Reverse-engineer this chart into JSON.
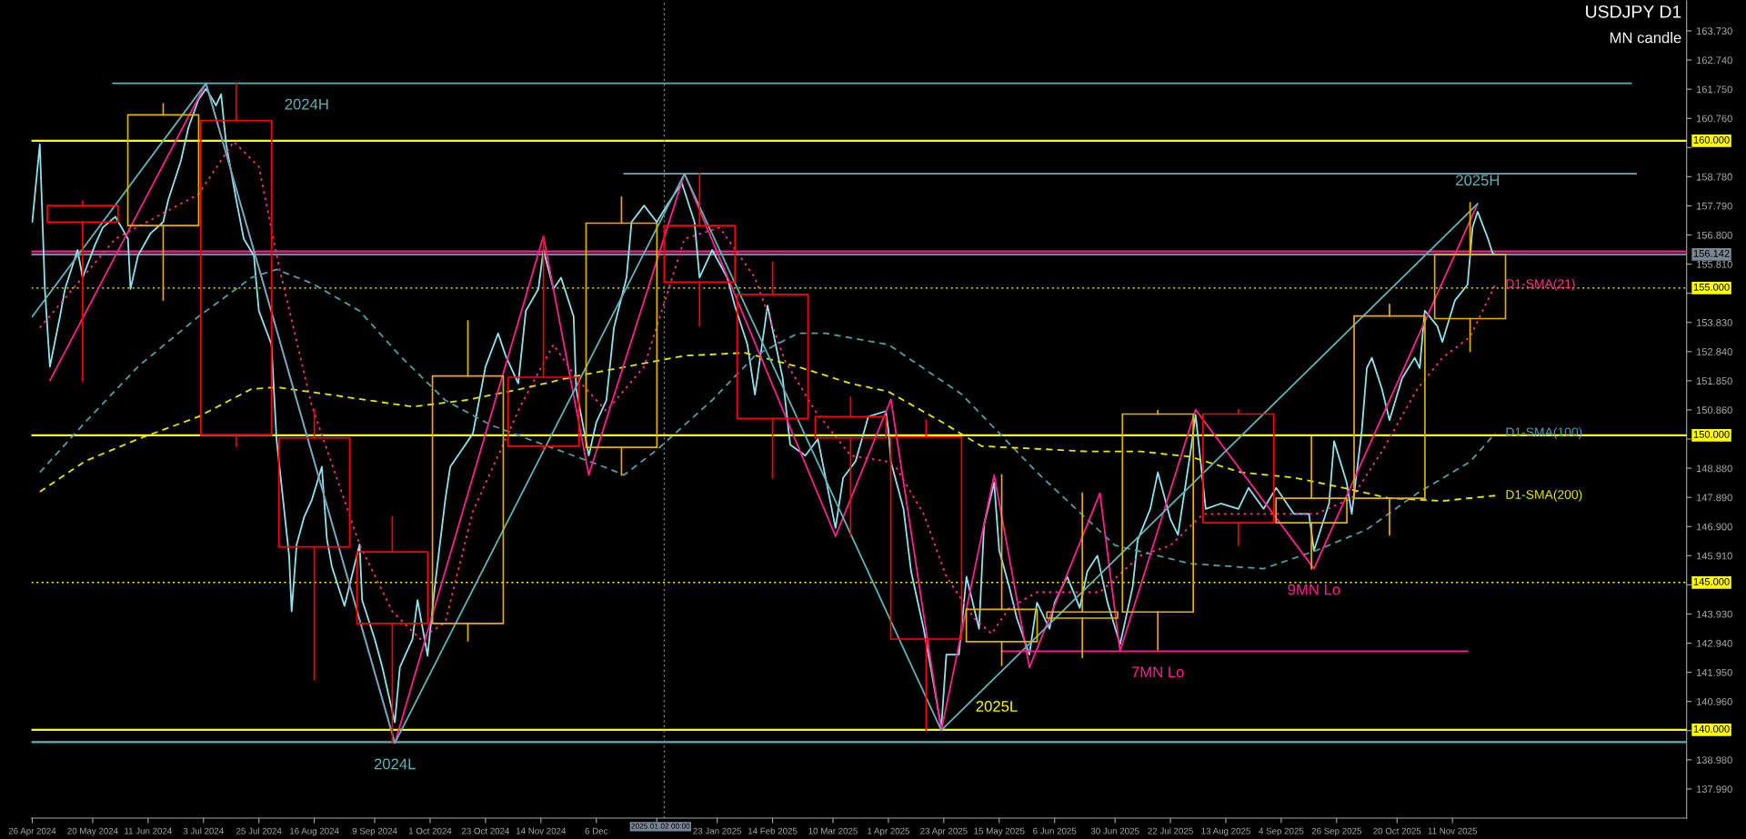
{
  "chart_data": {
    "type": "candlestick",
    "title": "USDJPY D1",
    "subtitle": "MN candle",
    "x": [
      "2024-05-16",
      "2024-06-17",
      "2024-07-16",
      "2024-08-16",
      "2024-09-16",
      "2024-10-16",
      "2024-11-15",
      "2024-12-16",
      "2025-01-16",
      "2025-02-14",
      "2025-03-17",
      "2025-04-16",
      "2025-05-16",
      "2025-06-17",
      "2025-07-17",
      "2025-08-18",
      "2025-09-16",
      "2025-10-17",
      "2025-11-18"
    ],
    "ohlc": [
      [
        157.8,
        157.95,
        151.86,
        157.24
      ],
      [
        157.12,
        161.25,
        154.59,
        160.88
      ],
      [
        160.69,
        161.95,
        149.63,
        150.0
      ],
      [
        149.91,
        150.89,
        141.7,
        146.21
      ],
      [
        146.04,
        147.23,
        139.55,
        143.61
      ],
      [
        143.61,
        153.88,
        143.02,
        152.01
      ],
      [
        151.97,
        156.76,
        149.5,
        149.63
      ],
      [
        149.59,
        158.08,
        148.65,
        157.2
      ],
      [
        157.12,
        158.88,
        153.72,
        155.2
      ],
      [
        154.78,
        155.88,
        148.55,
        150.57
      ],
      [
        150.63,
        151.29,
        146.57,
        149.91
      ],
      [
        149.94,
        150.51,
        139.98,
        143.08
      ],
      [
        142.99,
        148.65,
        142.19,
        144.09
      ],
      [
        143.79,
        148.03,
        142.46,
        144.0
      ],
      [
        144.0,
        150.83,
        142.72,
        150.72
      ],
      [
        150.72,
        150.86,
        146.26,
        147.03
      ],
      [
        147.03,
        149.94,
        145.47,
        147.86
      ],
      [
        147.86,
        154.44,
        146.62,
        154.05
      ],
      [
        153.96,
        157.89,
        152.85,
        156.14
      ]
    ],
    "colors": [
      "#ff0000",
      "#e6b000",
      "#ff0000",
      "#ff0000",
      "#ff0000",
      "#e6b000",
      "#ff0000",
      "#e6b000",
      "#ff0000",
      "#ff0000",
      "#ff0000",
      "#ff0000",
      "#e6b000",
      "#e6b000",
      "#e6b000",
      "#ff0000",
      "#e6b000",
      "#e6b000",
      "#e6b000"
    ],
    "series": [
      {
        "type": "line",
        "color": "#8fe3ec",
        "line_style": "solid",
        "x": [
          "2024-04-26",
          "2024-04-29",
          "2024-05-01",
          "2024-05-03",
          "2024-05-07",
          "2024-05-09",
          "2024-05-14",
          "2024-05-16",
          "2024-05-21",
          "2024-05-24",
          "2024-05-29",
          "2024-06-03",
          "2024-06-04",
          "2024-06-07",
          "2024-06-12",
          "2024-06-17",
          "2024-06-19",
          "2024-06-24",
          "2024-06-27",
          "2024-07-01",
          "2024-07-04",
          "2024-07-08",
          "2024-07-10",
          "2024-07-12",
          "2024-07-16",
          "2024-07-19",
          "2024-07-23",
          "2024-07-25",
          "2024-07-30",
          "2024-08-01",
          "2024-08-06",
          "2024-08-07",
          "2024-08-09",
          "2024-08-12",
          "2024-08-15",
          "2024-08-19",
          "2024-08-21",
          "2024-08-23",
          "2024-08-28",
          "2024-09-03",
          "2024-09-04",
          "2024-09-09",
          "2024-09-12",
          "2024-09-17",
          "2024-09-19",
          "2024-09-24",
          "2024-09-26",
          "2024-09-30",
          "2024-10-03",
          "2024-10-07",
          "2024-10-09",
          "2024-10-15",
          "2024-10-18",
          "2024-10-23",
          "2024-10-28",
          "2024-10-31",
          "2024-11-05",
          "2024-11-08",
          "2024-11-13",
          "2024-11-15",
          "2024-11-19",
          "2024-11-22",
          "2024-11-27",
          "2024-11-28",
          "2024-12-03",
          "2024-12-06",
          "2024-12-10",
          "2024-12-13",
          "2024-12-18",
          "2024-12-20",
          "2024-12-25",
          "2024-12-30",
          "2025-01-03",
          "2025-01-09",
          "2025-01-14",
          "2025-01-16",
          "2025-01-21",
          "2025-01-27",
          "2025-01-30",
          "2025-02-04",
          "2025-02-07",
          "2025-02-12",
          "2025-02-18",
          "2025-02-21",
          "2025-02-27",
          "2025-03-04",
          "2025-03-11",
          "2025-03-14",
          "2025-03-19",
          "2025-03-24",
          "2025-03-31",
          "2025-04-01",
          "2025-04-02",
          "2025-04-07",
          "2025-04-10",
          "2025-04-15",
          "2025-04-18",
          "2025-04-22",
          "2025-04-24",
          "2025-04-29",
          "2025-05-02",
          "2025-05-07",
          "2025-05-09",
          "2025-05-13",
          "2025-05-15",
          "2025-05-19",
          "2025-05-22",
          "2025-05-27",
          "2025-05-30",
          "2025-06-04",
          "2025-06-06",
          "2025-06-11",
          "2025-06-16",
          "2025-06-19",
          "2025-06-23",
          "2025-06-27",
          "2025-07-02",
          "2025-07-07",
          "2025-07-09",
          "2025-07-14",
          "2025-07-17",
          "2025-07-22",
          "2025-07-25",
          "2025-07-30",
          "2025-08-01",
          "2025-08-05",
          "2025-08-11",
          "2025-08-18",
          "2025-08-22",
          "2025-08-28",
          "2025-09-02",
          "2025-09-09",
          "2025-09-15",
          "2025-09-17",
          "2025-09-23",
          "2025-09-25",
          "2025-09-30",
          "2025-10-02",
          "2025-10-06",
          "2025-10-08",
          "2025-10-10",
          "2025-10-14",
          "2025-10-17",
          "2025-10-22",
          "2025-10-27",
          "2025-10-29",
          "2025-10-31",
          "2025-11-05",
          "2025-11-07",
          "2025-11-12",
          "2025-11-17",
          "2025-11-19",
          "2025-11-21",
          "2025-11-25",
          "2025-11-27",
          "2025-11-28"
        ],
        "values": [
          157.24,
          159.88,
          154.97,
          152.33,
          154.03,
          154.97,
          156.29,
          155.35,
          156.48,
          157.05,
          157.42,
          156.67,
          154.97,
          156.1,
          156.86,
          157.24,
          157.99,
          159.31,
          160.44,
          161.39,
          161.77,
          161.2,
          161.58,
          159.88,
          157.99,
          156.67,
          156.1,
          154.22,
          153.08,
          149.87,
          145.91,
          144.02,
          146.29,
          147.23,
          147.8,
          148.93,
          146.48,
          145.53,
          144.21,
          146.29,
          144.4,
          143.08,
          142.13,
          140.25,
          142.13,
          143.08,
          144.4,
          142.51,
          144.97,
          147.8,
          148.93,
          149.68,
          150.06,
          152.33,
          153.46,
          152.7,
          151.76,
          154.22,
          154.97,
          156.29,
          154.97,
          155.35,
          154.03,
          151.57,
          149.31,
          150.44,
          151.19,
          153.65,
          155.35,
          157.24,
          157.8,
          157.24,
          157.8,
          158.56,
          157.24,
          155.35,
          156.29,
          155.35,
          154.4,
          153.08,
          151.38,
          154.4,
          151.95,
          149.68,
          149.31,
          149.87,
          146.85,
          148.55,
          149.12,
          150.63,
          150.82,
          150.16,
          149.1,
          147.5,
          145.38,
          143.43,
          142.02,
          140.07,
          142.55,
          142.55,
          145.2,
          143.43,
          146.97,
          148.39,
          146.09,
          144.85,
          143.79,
          142.55,
          144.32,
          143.43,
          144.32,
          145.2,
          144.14,
          145.38,
          145.91,
          144.32,
          142.9,
          144.85,
          146.44,
          147.5,
          148.74,
          147.15,
          146.62,
          149.45,
          150.69,
          147.5,
          147.68,
          147.5,
          148.21,
          147.5,
          148.21,
          147.33,
          147.33,
          146.09,
          147.68,
          149.8,
          148.39,
          147.33,
          150.16,
          152.28,
          152.63,
          151.57,
          150.51,
          151.93,
          152.63,
          152.28,
          154.23,
          153.7,
          153.17,
          154.58,
          155.11,
          157.06,
          157.59,
          156.7,
          156.17,
          156.14
        ]
      },
      {
        "type": "line",
        "name": "D1-SMA(21)",
        "color": "#ff2d8a",
        "line_style": "dotted",
        "x": [
          "2024-04-29",
          "2024-05-29",
          "2024-07-01",
          "2024-07-15",
          "2024-07-25",
          "2024-08-02",
          "2024-08-15",
          "2024-09-03",
          "2024-09-16",
          "2024-09-27",
          "2024-10-07",
          "2024-10-18",
          "2024-11-06",
          "2024-11-19",
          "2024-11-28",
          "2024-12-10",
          "2024-12-25",
          "2025-01-10",
          "2025-01-24",
          "2025-02-07",
          "2025-02-19",
          "2025-03-03",
          "2025-03-17",
          "2025-03-31",
          "2025-04-04",
          "2025-04-15",
          "2025-04-24",
          "2025-05-05",
          "2025-05-12",
          "2025-05-19",
          "2025-05-30",
          "2025-06-10",
          "2025-06-24",
          "2025-07-10",
          "2025-07-22",
          "2025-08-04",
          "2025-08-19",
          "2025-09-04",
          "2025-09-18",
          "2025-10-02",
          "2025-10-14",
          "2025-10-28",
          "2025-11-07",
          "2025-11-18",
          "2025-11-28"
        ],
        "values": [
          153.65,
          156.67,
          158.18,
          159.97,
          159.12,
          155.72,
          151.01,
          146.29,
          144.02,
          143.08,
          143.64,
          147.42,
          151.01,
          153.08,
          151.95,
          150.82,
          152.33,
          156.67,
          157.05,
          155.35,
          152.52,
          150.82,
          149.31,
          149.12,
          148.92,
          147.33,
          145.2,
          143.79,
          143.26,
          144.14,
          144.67,
          144.67,
          144.67,
          145.91,
          146.26,
          147.33,
          147.33,
          147.33,
          147.33,
          147.86,
          149.45,
          151.57,
          152.63,
          153.34,
          155.11
        ]
      },
      {
        "type": "line",
        "name": "D1-SMA(100)",
        "color": "#4f9fa3",
        "line_style": "dashed",
        "x": [
          "2024-04-29",
          "2024-05-17",
          "2024-06-07",
          "2024-07-01",
          "2024-07-22",
          "2024-08-01",
          "2024-08-15",
          "2024-09-03",
          "2024-09-19",
          "2024-10-07",
          "2024-10-25",
          "2024-11-15",
          "2024-12-09",
          "2024-12-17",
          "2024-12-30",
          "2025-01-21",
          "2025-02-07",
          "2025-02-24",
          "2025-03-07",
          "2025-04-01",
          "2025-04-30",
          "2025-05-30",
          "2025-06-30",
          "2025-07-30",
          "2025-08-28",
          "2025-09-18",
          "2025-10-08",
          "2025-10-28",
          "2025-11-18",
          "2025-11-28"
        ],
        "values": [
          148.74,
          150.44,
          152.33,
          154.03,
          155.35,
          155.63,
          155.16,
          154.22,
          152.7,
          151.19,
          150.35,
          149.68,
          148.93,
          148.65,
          149.5,
          151.19,
          152.7,
          153.46,
          153.46,
          153.08,
          151.4,
          148.74,
          146.26,
          145.64,
          145.47,
          146.09,
          146.8,
          148.03,
          149.1,
          150.07
        ]
      },
      {
        "type": "line",
        "name": "D1-SMA(200)",
        "color": "#e6e600",
        "line_style": "dashed",
        "x": [
          "2024-04-29",
          "2024-05-17",
          "2024-06-07",
          "2024-07-01",
          "2024-07-22",
          "2024-08-01",
          "2024-08-22",
          "2024-09-24",
          "2024-10-15",
          "2024-11-06",
          "2024-11-27",
          "2024-12-18",
          "2025-01-10",
          "2025-02-03",
          "2025-02-24",
          "2025-03-17",
          "2025-04-01",
          "2025-04-21",
          "2025-05-08",
          "2025-05-30",
          "2025-06-19",
          "2025-07-10",
          "2025-07-30",
          "2025-08-19",
          "2025-09-09",
          "2025-09-29",
          "2025-10-17",
          "2025-11-07",
          "2025-11-28"
        ],
        "values": [
          148.08,
          149.12,
          149.87,
          150.63,
          151.57,
          151.63,
          151.38,
          150.97,
          151.19,
          151.57,
          151.99,
          152.33,
          152.7,
          152.8,
          152.33,
          151.76,
          151.48,
          150.51,
          149.63,
          149.54,
          149.45,
          149.45,
          149.27,
          148.74,
          148.56,
          148.21,
          147.86,
          147.77,
          147.95
        ]
      },
      {
        "type": "line",
        "color": "#ff1f8e",
        "line_style": "solid",
        "x": [
          "2024-05-03",
          "2024-07-04",
          "2024-09-17",
          "2024-11-15",
          "2024-12-03",
          "2025-01-10",
          "2025-03-11",
          "2025-04-02",
          "2025-04-22",
          "2025-05-13",
          "2025-05-27",
          "2025-06-24",
          "2025-07-02",
          "2025-08-01",
          "2025-09-17",
          "2025-11-21"
        ],
        "values": [
          151.86,
          161.95,
          139.55,
          156.76,
          148.65,
          158.88,
          146.57,
          151.22,
          139.98,
          148.65,
          142.11,
          148.03,
          142.67,
          150.87,
          145.47,
          157.86
        ]
      },
      {
        "type": "line",
        "color": "#5fb3b8",
        "line_style": "solid",
        "x": [
          "2024-04-26",
          "2024-07-04",
          "2024-09-17",
          "2025-01-10",
          "2025-04-22",
          "2025-11-21"
        ],
        "values": [
          154.03,
          161.95,
          139.55,
          158.88,
          139.98,
          157.86
        ]
      },
      {
        "type": "line",
        "color": "#5fb3b8",
        "line_style": "solid",
        "x": [
          "2024-05-28",
          "2026-01-21"
        ],
        "values": [
          161.95,
          161.95
        ]
      },
      {
        "type": "line",
        "color": "#5fb3b8",
        "line_style": "solid",
        "x": [
          "2024-12-17",
          "2026-01-23"
        ],
        "values": [
          158.88,
          158.88
        ]
      },
      {
        "type": "line",
        "color": "#ff1f8e",
        "line_style": "solid",
        "x": [
          "2025-05-16",
          "2025-11-17"
        ],
        "values": [
          142.67,
          142.67
        ]
      }
    ],
    "ref_lines": [
      {
        "axis": "y",
        "value": 160.0,
        "label": "160.000",
        "color": "#ffff00",
        "line_style": "solid"
      },
      {
        "axis": "y",
        "value": 155.0,
        "label": "155.000",
        "color": "#ffff00",
        "line_style": "dotted"
      },
      {
        "axis": "y",
        "value": 150.0,
        "label": "150.000",
        "color": "#ffff00",
        "line_style": "solid"
      },
      {
        "axis": "y",
        "value": 145.0,
        "label": "145.000",
        "color": "#ffff00",
        "line_style": "dotted"
      },
      {
        "axis": "y",
        "value": 140.0,
        "label": "140.000",
        "color": "#ffff00",
        "line_style": "solid"
      },
      {
        "axis": "y",
        "value": 156.24,
        "color": "#ff1f8e",
        "line_style": "solid"
      },
      {
        "axis": "y",
        "value": 156.142,
        "label": "156.142",
        "color": "#7a8794",
        "line_style": "solid"
      },
      {
        "axis": "y",
        "value": 139.58,
        "color": "#5fb3b8",
        "line_style": "solid"
      },
      {
        "axis": "x",
        "value": "2025-01-02",
        "label": "2025.01.02 00:00",
        "color": "#7a8794",
        "line_style": "dotted"
      }
    ],
    "annotations": [
      {
        "text": "2024H",
        "x": "2024-08-13",
        "y": 161.95
      },
      {
        "text": "2024L",
        "x": "2024-09-17",
        "y": 139.55
      },
      {
        "text": "2025H",
        "x": "2025-11-21",
        "y": 157.86
      },
      {
        "text": "2025L",
        "x": "2025-05-14",
        "y": 140.0
      },
      {
        "text": "7MN Lo",
        "x": "2025-07-17",
        "y": 142.67
      },
      {
        "text": "9MN Lo",
        "x": "2025-09-17",
        "y": 145.47
      }
    ],
    "xlim": [
      "2024-04-25T16:00",
      "2026-02-12"
    ],
    "ylim": [
      137.0,
      164.75
    ],
    "xticks": [
      {
        "value": "2024-04-26",
        "label": "26 Apr 2024"
      },
      {
        "value": "2024-05-20",
        "label": "20 May 2024"
      },
      {
        "value": "2024-06-11",
        "label": "11 Jun 2024"
      },
      {
        "value": "2024-07-03",
        "label": "3 Jul 2024"
      },
      {
        "value": "2024-07-25",
        "label": "25 Jul 2024"
      },
      {
        "value": "2024-08-16",
        "label": "16 Aug 2024"
      },
      {
        "value": "2024-09-09",
        "label": "9 Sep 2024"
      },
      {
        "value": "2024-10-01",
        "label": "1 Oct 2024"
      },
      {
        "value": "2024-10-23",
        "label": "23 Oct 2024"
      },
      {
        "value": "2024-11-14",
        "label": "14 Nov 2024"
      },
      {
        "value": "2024-12-06",
        "label": "6 Dec"
      },
      {
        "value": "2024-12-30",
        "label": null
      },
      {
        "value": "2025-01-23",
        "label": "23 Jan 2025"
      },
      {
        "value": "2025-02-14",
        "label": "14 Feb 2025"
      },
      {
        "value": "2025-03-10",
        "label": "10 Mar 2025"
      },
      {
        "value": "2025-04-01",
        "label": "1 Apr 2025"
      },
      {
        "value": "2025-04-23",
        "label": "23 Apr 2025"
      },
      {
        "value": "2025-05-15",
        "label": "15 May 2025"
      },
      {
        "value": "2025-06-06",
        "label": "6 Jun 2025"
      },
      {
        "value": "2025-06-30",
        "label": "30 Jun 2025"
      },
      {
        "value": "2025-07-22",
        "label": "22 Jul 2025"
      },
      {
        "value": "2025-08-13",
        "label": "13 Aug 2025"
      },
      {
        "value": "2025-09-04",
        "label": "4 Sep 2025"
      },
      {
        "value": "2025-09-26",
        "label": "26 Sep 2025"
      },
      {
        "value": "2025-10-20",
        "label": "20 Oct 2025"
      },
      {
        "value": "2025-11-11",
        "label": "11 Nov 2025"
      }
    ],
    "yticks": [
      {
        "value": 163.73,
        "label": "163.730"
      },
      {
        "value": 162.74,
        "label": "162.740"
      },
      {
        "value": 161.75,
        "label": "161.750"
      },
      {
        "value": 160.76,
        "label": "160.760"
      },
      {
        "value": 159.77,
        "label": null
      },
      {
        "value": 158.78,
        "label": "158.780"
      },
      {
        "value": 157.79,
        "label": "157.790"
      },
      {
        "value": 156.8,
        "label": "156.800"
      },
      {
        "value": 155.81,
        "label": "155.810"
      },
      {
        "value": 154.82,
        "label": null
      },
      {
        "value": 153.83,
        "label": "153.830"
      },
      {
        "value": 152.84,
        "label": "152.840"
      },
      {
        "value": 151.85,
        "label": "151.850"
      },
      {
        "value": 150.86,
        "label": "150.860"
      },
      {
        "value": 149.87,
        "label": null
      },
      {
        "value": 148.88,
        "label": "148.880"
      },
      {
        "value": 147.89,
        "label": "147.890"
      },
      {
        "value": 146.9,
        "label": "146.900"
      },
      {
        "value": 145.91,
        "label": "145.910"
      },
      {
        "value": 144.92,
        "label": null
      },
      {
        "value": 143.93,
        "label": "143.930"
      },
      {
        "value": 142.94,
        "label": "142.940"
      },
      {
        "value": 141.95,
        "label": "141.950"
      },
      {
        "value": 140.96,
        "label": "140.960"
      },
      {
        "value": 139.97,
        "label": null
      },
      {
        "value": 138.98,
        "label": "138.980"
      },
      {
        "value": 137.99,
        "label": "137.990"
      }
    ]
  }
}
